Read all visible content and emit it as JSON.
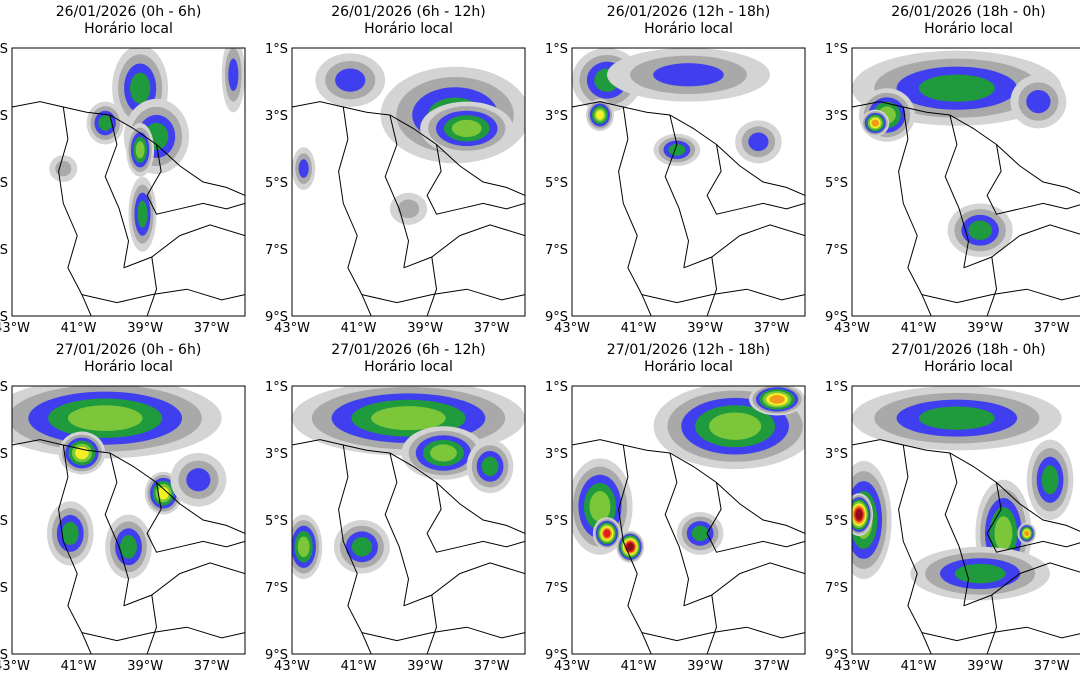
{
  "colors": {
    "light_gray": "#d4d4d4",
    "gray": "#a9a9a9",
    "blue": "#3f3ff0",
    "green": "#1f9a3c",
    "light_green": "#7cc63a",
    "yellow": "#f4f028",
    "orange": "#f09a1c",
    "red": "#e01e1e",
    "dark_red": "#8c0c18",
    "border": "#000000"
  },
  "axes": {
    "x_ticks": [
      "43°W",
      "41°W",
      "39°W",
      "37°W"
    ],
    "y_ticks": [
      "1°S",
      "3°S",
      "5°S",
      "7°S",
      "9°S"
    ]
  },
  "panels": [
    {
      "date": "26/01/2026 (0h - 6h)",
      "subtitle": "Horário local",
      "intensity": 0.35
    },
    {
      "date": "26/01/2026 (6h - 12h)",
      "subtitle": "Horário local",
      "intensity": 0.45
    },
    {
      "date": "26/01/2026 (12h - 18h)",
      "subtitle": "Horário local",
      "intensity": 0.4
    },
    {
      "date": "26/01/2026 (18h - 0h)",
      "subtitle": "Horário local",
      "intensity": 0.55
    },
    {
      "date": "27/01/2026 (0h - 6h)",
      "subtitle": "Horário local",
      "intensity": 0.6
    },
    {
      "date": "27/01/2026 (6h - 12h)",
      "subtitle": "Horário local",
      "intensity": 0.65
    },
    {
      "date": "27/01/2026 (12h - 18h)",
      "subtitle": "Horário local",
      "intensity": 0.8
    },
    {
      "date": "27/01/2026 (18h - 0h)",
      "subtitle": "Horário local",
      "intensity": 0.85
    }
  ]
}
